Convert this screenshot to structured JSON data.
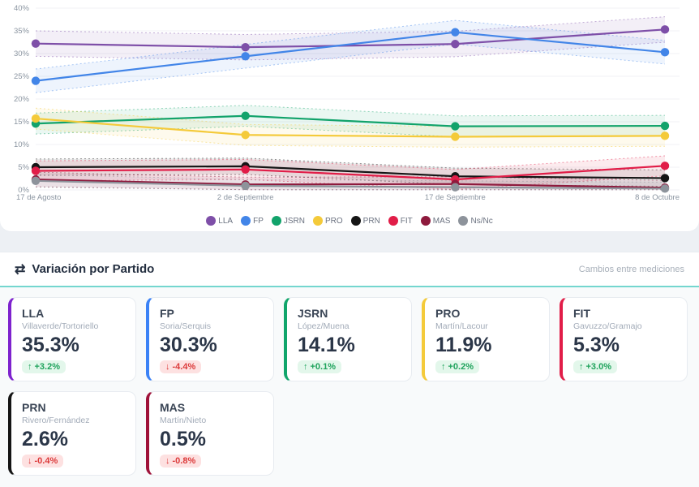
{
  "chart": {
    "chart_data": {
      "type": "line",
      "title": "",
      "x_categories": [
        "17 de Agosto",
        "2 de Septiembre",
        "17 de Septiembre",
        "8 de Octubre"
      ],
      "y_ticks": [
        "0%",
        "5%",
        "10%",
        "15%",
        "20%",
        "25%",
        "30%",
        "35%",
        "40%"
      ],
      "ylim": [
        0,
        40
      ],
      "grid": true,
      "legend_position": "bottom",
      "bands": "dashed confidence interval around each series",
      "series": [
        {
          "name": "LLA",
          "color": "#7e4fa8",
          "values": [
            32.2,
            31.4,
            32.1,
            35.3
          ],
          "band": 2.8
        },
        {
          "name": "FP",
          "color": "#4285e8",
          "values": [
            24.0,
            29.4,
            34.7,
            30.3
          ],
          "band": 2.6
        },
        {
          "name": "JSRN",
          "color": "#12a36b",
          "values": [
            14.6,
            16.3,
            14.0,
            14.1
          ],
          "band": 2.3
        },
        {
          "name": "PRO",
          "color": "#f4ca3a",
          "values": [
            15.7,
            12.1,
            11.7,
            11.9
          ],
          "band": 2.3
        },
        {
          "name": "PRN",
          "color": "#151515",
          "values": [
            5.0,
            5.2,
            3.0,
            2.6
          ],
          "band": 1.8
        },
        {
          "name": "FIT",
          "color": "#e11d48",
          "values": [
            4.2,
            4.5,
            2.3,
            5.3
          ],
          "band": 2.2
        },
        {
          "name": "MAS",
          "color": "#8e1a3d",
          "values": [
            2.3,
            1.2,
            1.3,
            0.5
          ],
          "band": 1.6
        },
        {
          "name": "Ns/Nc",
          "color": "#8d939b",
          "values": [
            2.0,
            0.9,
            0.6,
            0.3
          ],
          "band": 1.4
        }
      ]
    }
  },
  "variation": {
    "icon": "⇄",
    "title": "Variación por Partido",
    "subtitle": "Cambios entre mediciones",
    "accent_color": "#74d6cf",
    "positive_color": "#1fa35c",
    "negative_color": "#dc3b3b",
    "up_arrow": "↑",
    "down_arrow": "↓",
    "cards": [
      {
        "party": "LLA",
        "candidates": "Villaverde/Tortoriello",
        "value": "35.3%",
        "change": "+3.2%",
        "direction": "up",
        "color": "#7e22ce"
      },
      {
        "party": "FP",
        "candidates": "Soria/Serquis",
        "value": "30.3%",
        "change": "-4.4%",
        "direction": "down",
        "color": "#3b82f6"
      },
      {
        "party": "JSRN",
        "candidates": "López/Muena",
        "value": "14.1%",
        "change": "+0.1%",
        "direction": "up",
        "color": "#10a56b"
      },
      {
        "party": "PRO",
        "candidates": "Martín/Lacour",
        "value": "11.9%",
        "change": "+0.2%",
        "direction": "up",
        "color": "#f4ca3a"
      },
      {
        "party": "FIT",
        "candidates": "Gavuzzo/Gramajo",
        "value": "5.3%",
        "change": "+3.0%",
        "direction": "up",
        "color": "#e11d48"
      },
      {
        "party": "PRN",
        "candidates": "Rivero/Fernández",
        "value": "2.6%",
        "change": "-0.4%",
        "direction": "down",
        "color": "#151515"
      },
      {
        "party": "MAS",
        "candidates": "Martín/Nieto",
        "value": "0.5%",
        "change": "-0.8%",
        "direction": "down",
        "color": "#9f1239"
      }
    ]
  }
}
